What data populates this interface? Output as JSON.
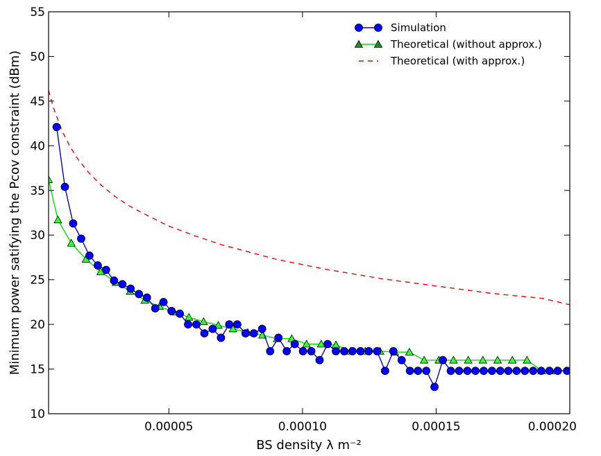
{
  "chart_data": {
    "type": "line",
    "xlabel": "BS density λ m⁻²",
    "ylabel": "Minimum power satifying the Pcov constraint (dBm)",
    "xlim": [
      5e-06,
      0.0002
    ],
    "ylim": [
      10,
      55
    ],
    "x_ticks": [
      5e-05,
      0.0001,
      0.00015,
      0.0002
    ],
    "x_tick_labels": [
      "0.00005",
      "0.00010",
      "0.00015",
      "0.00020"
    ],
    "y_ticks": [
      10,
      15,
      20,
      25,
      30,
      35,
      40,
      45,
      50,
      55
    ],
    "y_tick_labels": [
      "10",
      "15",
      "20",
      "25",
      "30",
      "35",
      "40",
      "45",
      "50",
      "55"
    ],
    "grid": false,
    "legend_position": "top-right",
    "series": [
      {
        "name": "Simulation",
        "style": "line-circle",
        "line_color": "#0000cc",
        "marker_color": "#0000ff",
        "x": [
          8e-06,
          1.11e-05,
          1.42e-05,
          1.72e-05,
          2.03e-05,
          2.34e-05,
          2.65e-05,
          2.95e-05,
          3.26e-05,
          3.57e-05,
          3.88e-05,
          4.18e-05,
          4.49e-05,
          4.8e-05,
          5.1e-05,
          5.41e-05,
          5.72e-05,
          6.03e-05,
          6.33e-05,
          6.64e-05,
          6.95e-05,
          7.26e-05,
          7.56e-05,
          7.87e-05,
          8.18e-05,
          8.49e-05,
          8.79e-05,
          9.1e-05,
          9.41e-05,
          9.71e-05,
          0.0001002,
          0.0001033,
          0.0001064,
          0.0001094,
          0.0001125,
          0.0001156,
          0.0001187,
          0.0001217,
          0.0001248,
          0.0001279,
          0.0001309,
          0.000134,
          0.0001371,
          0.0001402,
          0.0001432,
          0.0001463,
          0.0001494,
          0.0001525,
          0.0001555,
          0.0001586,
          0.0001617,
          0.0001647,
          0.0001678,
          0.0001709,
          0.000174,
          0.000177,
          0.0001801,
          0.0001832,
          0.0001863,
          0.0001893,
          0.0001924,
          0.0001955,
          0.000199
        ],
        "y": [
          42.1,
          35.4,
          31.3,
          29.6,
          27.7,
          26.6,
          26.1,
          24.9,
          24.5,
          24.0,
          23.4,
          23.0,
          21.8,
          22.5,
          21.5,
          21.2,
          20.0,
          20.0,
          19.0,
          19.5,
          18.5,
          20.0,
          20.0,
          19.0,
          19.0,
          19.5,
          17.0,
          18.5,
          17.0,
          17.8,
          17.0,
          17.0,
          16.0,
          17.8,
          17.0,
          17.0,
          17.0,
          17.0,
          17.0,
          17.0,
          14.8,
          17.0,
          16.0,
          14.8,
          14.8,
          14.8,
          13.0,
          16.0,
          14.8,
          14.8,
          14.8,
          14.8,
          14.8,
          14.8,
          14.8,
          14.8,
          14.8,
          14.8,
          14.8,
          14.8,
          14.8,
          14.8,
          14.8
        ]
      },
      {
        "name": "Theoretical (without approx.)",
        "style": "line-triangle",
        "line_color": "#00dd00",
        "marker_color": "#33ff33",
        "x": [
          5e-06,
          8.5e-06,
          1.35e-05,
          1.9e-05,
          2.45e-05,
          3.02e-05,
          3.55e-05,
          4.1e-05,
          4.65e-05,
          5.2e-05,
          5.75e-05,
          6.3e-05,
          6.85e-05,
          7.4e-05,
          7.95e-05,
          8.5e-05,
          9.05e-05,
          9.6e-05,
          0.0001015,
          0.000107,
          0.0001125,
          0.000118,
          0.0001235,
          0.000129,
          0.0001345,
          0.00014,
          0.0001455,
          0.000151,
          0.0001565,
          0.000162,
          0.0001675,
          0.000173,
          0.0001785,
          0.000184,
          0.0001895,
          0.000195,
          0.0002
        ],
        "y": [
          36.2,
          31.7,
          29.1,
          27.3,
          25.9,
          24.7,
          23.7,
          22.7,
          22.0,
          21.4,
          20.8,
          20.3,
          19.9,
          19.5,
          19.1,
          18.8,
          18.4,
          18.4,
          17.8,
          17.8,
          17.7,
          17.0,
          17.0,
          17.0,
          16.9,
          16.9,
          16.0,
          16.0,
          16.0,
          16.0,
          16.0,
          16.0,
          16.0,
          16.0,
          14.8,
          14.8,
          14.8
        ]
      },
      {
        "name": "Theoretical (with approx.)",
        "style": "dashed",
        "line_color": "#ee0000",
        "x": [
          5e-06,
          7e-06,
          1e-05,
          1.3e-05,
          1.6e-05,
          2e-05,
          2.5e-05,
          3e-05,
          3.5e-05,
          4e-05,
          5e-05,
          6e-05,
          7e-05,
          8e-05,
          9e-05,
          0.0001,
          0.00011,
          0.00012,
          0.00013,
          0.00014,
          0.00015,
          0.00016,
          0.00017,
          0.00018,
          0.00019,
          0.0002
        ],
        "y": [
          46.2,
          44.1,
          41.7,
          39.9,
          38.5,
          37.0,
          35.5,
          34.3,
          33.3,
          32.5,
          31.0,
          29.9,
          28.9,
          28.1,
          27.3,
          26.7,
          26.1,
          25.6,
          25.1,
          24.7,
          24.3,
          23.9,
          23.5,
          23.2,
          22.9,
          22.2
        ]
      }
    ]
  }
}
